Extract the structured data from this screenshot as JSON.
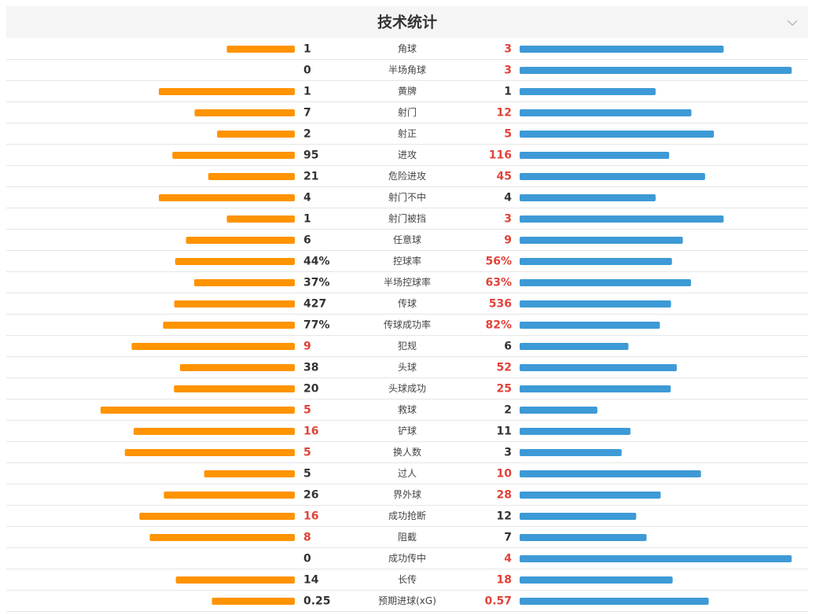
{
  "header": {
    "title": "技术统计"
  },
  "rows": [
    {
      "label": "角球",
      "home": 1,
      "away": 3
    },
    {
      "label": "半场角球",
      "home": 0,
      "away": 3
    },
    {
      "label": "黄牌",
      "home": 1,
      "away": 1
    },
    {
      "label": "射门",
      "home": 7,
      "away": 12
    },
    {
      "label": "射正",
      "home": 2,
      "away": 5
    },
    {
      "label": "进攻",
      "home": 95,
      "away": 116
    },
    {
      "label": "危险进攻",
      "home": 21,
      "away": 45
    },
    {
      "label": "射门不中",
      "home": 4,
      "away": 4
    },
    {
      "label": "射门被挡",
      "home": 1,
      "away": 3
    },
    {
      "label": "任意球",
      "home": 6,
      "away": 9
    },
    {
      "label": "控球率",
      "home": {
        "value": 44,
        "label": "44%"
      },
      "away": {
        "value": 56,
        "label": "56%"
      }
    },
    {
      "label": "半场控球率",
      "home": {
        "value": 37,
        "label": "37%"
      },
      "away": {
        "value": 63,
        "label": "63%"
      }
    },
    {
      "label": "传球",
      "home": 427,
      "away": 536
    },
    {
      "label": "传球成功率",
      "home": {
        "value": 77,
        "label": "77%"
      },
      "away": {
        "value": 82,
        "label": "82%"
      }
    },
    {
      "label": "犯规",
      "home": 9,
      "away": 6
    },
    {
      "label": "头球",
      "home": 38,
      "away": 52
    },
    {
      "label": "头球成功",
      "home": 20,
      "away": 25
    },
    {
      "label": "救球",
      "home": 5,
      "away": 2
    },
    {
      "label": "铲球",
      "home": 16,
      "away": 11
    },
    {
      "label": "换人数",
      "home": 5,
      "away": 3
    },
    {
      "label": "过人",
      "home": 5,
      "away": 10
    },
    {
      "label": "界外球",
      "home": 26,
      "away": 28
    },
    {
      "label": "成功抢断",
      "home": 16,
      "away": 12
    },
    {
      "label": "阻截",
      "home": 8,
      "away": 7
    },
    {
      "label": "成功传中",
      "home": 0,
      "away": 4
    },
    {
      "label": "长传",
      "home": 14,
      "away": 18
    },
    {
      "label": "预期进球(xG)",
      "home": 0.25,
      "away": 0.57
    }
  ]
}
